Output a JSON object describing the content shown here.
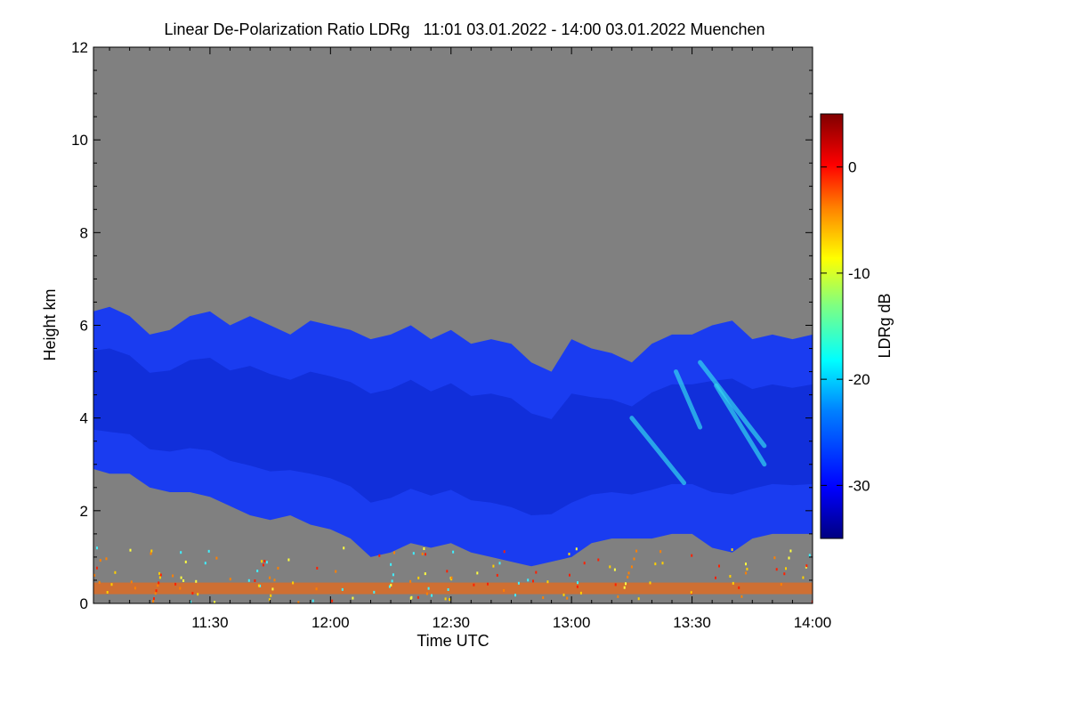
{
  "chart_data": {
    "type": "heatmap",
    "title": "Linear De-Polarization Ratio LDRg   11:01 03.01.2022 - 14:00 03.01.2022 Muenchen",
    "xlabel": "Time UTC",
    "ylabel": "Height km",
    "x_range_minutes_utc": [
      661,
      840
    ],
    "x_ticks": [
      {
        "minute": 690,
        "label": "11:30"
      },
      {
        "minute": 720,
        "label": "12:00"
      },
      {
        "minute": 750,
        "label": "12:30"
      },
      {
        "minute": 780,
        "label": "13:00"
      },
      {
        "minute": 810,
        "label": "13:30"
      },
      {
        "minute": 840,
        "label": "14:00"
      }
    ],
    "ylim": [
      0,
      12
    ],
    "y_ticks": [
      {
        "value": 0,
        "label": "0"
      },
      {
        "value": 2,
        "label": "2"
      },
      {
        "value": 4,
        "label": "4"
      },
      {
        "value": 6,
        "label": "6"
      },
      {
        "value": 8,
        "label": "8"
      },
      {
        "value": 10,
        "label": "10"
      },
      {
        "value": 12,
        "label": "12"
      }
    ],
    "colorbar": {
      "label": "LDRg dB",
      "range": [
        -35,
        5
      ],
      "ticks": [
        {
          "value": 0,
          "label": "0"
        },
        {
          "value": -10,
          "label": "-10"
        },
        {
          "value": -20,
          "label": "-20"
        },
        {
          "value": -30,
          "label": "-30"
        }
      ],
      "colors": [
        "#000080",
        "#0000ff",
        "#0080ff",
        "#00ffff",
        "#80ff80",
        "#ffff00",
        "#ff8000",
        "#ff0000",
        "#800000"
      ]
    },
    "no_signal_color": "#808080",
    "cloud_top_km": [
      [
        661,
        6.3
      ],
      [
        665,
        6.4
      ],
      [
        670,
        6.2
      ],
      [
        675,
        5.8
      ],
      [
        680,
        5.9
      ],
      [
        685,
        6.2
      ],
      [
        690,
        6.3
      ],
      [
        695,
        6.0
      ],
      [
        700,
        6.2
      ],
      [
        705,
        6.0
      ],
      [
        710,
        5.8
      ],
      [
        715,
        6.1
      ],
      [
        720,
        6.0
      ],
      [
        725,
        5.9
      ],
      [
        730,
        5.7
      ],
      [
        735,
        5.8
      ],
      [
        740,
        6.0
      ],
      [
        745,
        5.7
      ],
      [
        750,
        5.9
      ],
      [
        755,
        5.6
      ],
      [
        760,
        5.7
      ],
      [
        765,
        5.6
      ],
      [
        770,
        5.2
      ],
      [
        775,
        5.0
      ],
      [
        780,
        5.7
      ],
      [
        785,
        5.5
      ],
      [
        790,
        5.4
      ],
      [
        795,
        5.2
      ],
      [
        800,
        5.6
      ],
      [
        805,
        5.8
      ],
      [
        810,
        5.8
      ],
      [
        815,
        6.0
      ],
      [
        820,
        6.1
      ],
      [
        825,
        5.7
      ],
      [
        830,
        5.8
      ],
      [
        835,
        5.7
      ],
      [
        840,
        5.8
      ]
    ],
    "cloud_base_km": [
      [
        661,
        2.9
      ],
      [
        665,
        2.8
      ],
      [
        670,
        2.8
      ],
      [
        675,
        2.5
      ],
      [
        680,
        2.4
      ],
      [
        685,
        2.4
      ],
      [
        690,
        2.3
      ],
      [
        695,
        2.1
      ],
      [
        700,
        1.9
      ],
      [
        705,
        1.8
      ],
      [
        710,
        1.9
      ],
      [
        715,
        1.7
      ],
      [
        720,
        1.6
      ],
      [
        725,
        1.4
      ],
      [
        730,
        1.0
      ],
      [
        735,
        1.1
      ],
      [
        740,
        1.3
      ],
      [
        745,
        1.2
      ],
      [
        750,
        1.3
      ],
      [
        755,
        1.1
      ],
      [
        760,
        1.0
      ],
      [
        765,
        0.9
      ],
      [
        770,
        0.8
      ],
      [
        775,
        0.9
      ],
      [
        780,
        1.0
      ],
      [
        785,
        1.3
      ],
      [
        790,
        1.4
      ],
      [
        795,
        1.4
      ],
      [
        800,
        1.4
      ],
      [
        805,
        1.5
      ],
      [
        810,
        1.5
      ],
      [
        815,
        1.2
      ],
      [
        820,
        1.1
      ],
      [
        825,
        1.4
      ],
      [
        830,
        1.5
      ],
      [
        835,
        1.5
      ],
      [
        840,
        1.5
      ]
    ],
    "in_cloud_ldr_db": -31,
    "virga_streaks_ldr_db": -22,
    "near_ground_layer_km": [
      0.2,
      0.45
    ],
    "near_ground_ldr_db": -2
  }
}
